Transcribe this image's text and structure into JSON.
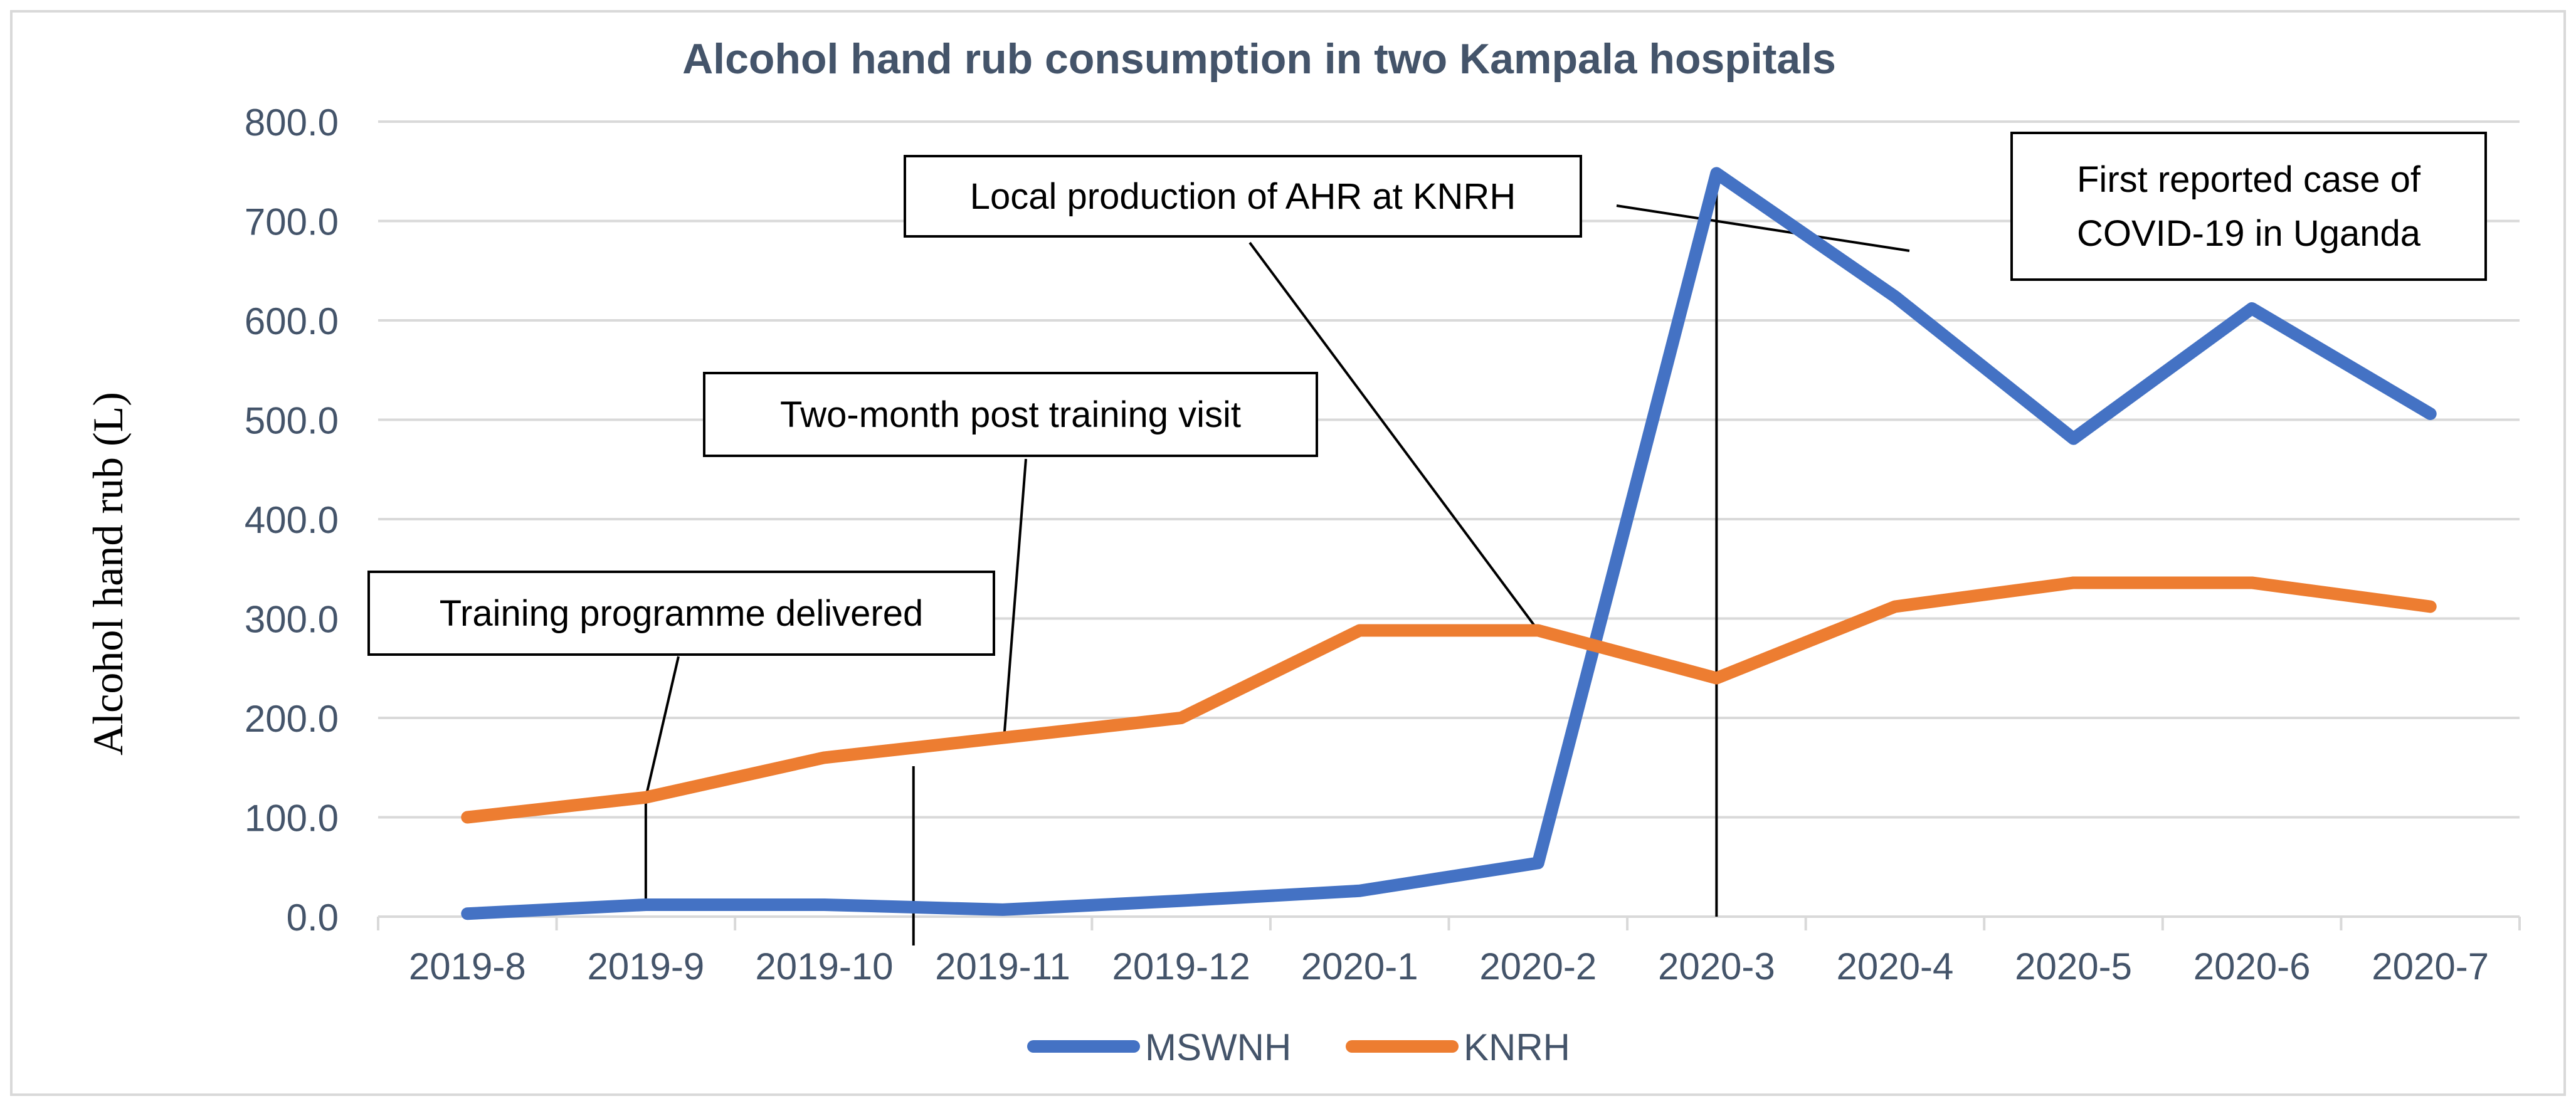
{
  "chart_data": {
    "type": "line",
    "title": "Alcohol hand rub consumption in two Kampala hospitals",
    "xlabel": "",
    "ylabel": "Alcohol hand rub (L)",
    "categories": [
      "2019-8",
      "2019-9",
      "2019-10",
      "2019-11",
      "2019-12",
      "2020-1",
      "2020-2",
      "2020-3",
      "2020-4",
      "2020-5",
      "2020-6",
      "2020-7"
    ],
    "ylim": [
      0,
      800
    ],
    "yticks": [
      "0.0",
      "100.0",
      "200.0",
      "300.0",
      "400.0",
      "500.0",
      "600.0",
      "700.0",
      "800.0"
    ],
    "grid": true,
    "legend_position": "bottom",
    "series": [
      {
        "name": "MSWNH",
        "color": "#4472C4",
        "values": [
          3,
          12,
          12,
          7,
          16,
          26,
          54,
          748,
          624,
          481,
          612,
          506
        ]
      },
      {
        "name": "KNRH",
        "color": "#ED7D31",
        "values": [
          100,
          120,
          160,
          180,
          200,
          288,
          288,
          240,
          312,
          336,
          336,
          312
        ]
      }
    ],
    "annotations": [
      {
        "id": "training",
        "lines": [
          "Training programme delivered"
        ],
        "marker_category": 1
      },
      {
        "id": "two-month",
        "lines": [
          "Two-month post training visit"
        ],
        "marker_category": 2.5
      },
      {
        "id": "local-production",
        "lines": [
          "Local production of AHR at KNRH"
        ],
        "marker_category": 6
      },
      {
        "id": "covid",
        "lines": [
          "First reported case of",
          "COVID-19 in Uganda"
        ],
        "marker_category": 7
      }
    ]
  },
  "colors": {
    "title": "#44546A",
    "axis_text": "#44546A",
    "grid": "#D9D9D9",
    "frame": "#D9D9D9"
  }
}
